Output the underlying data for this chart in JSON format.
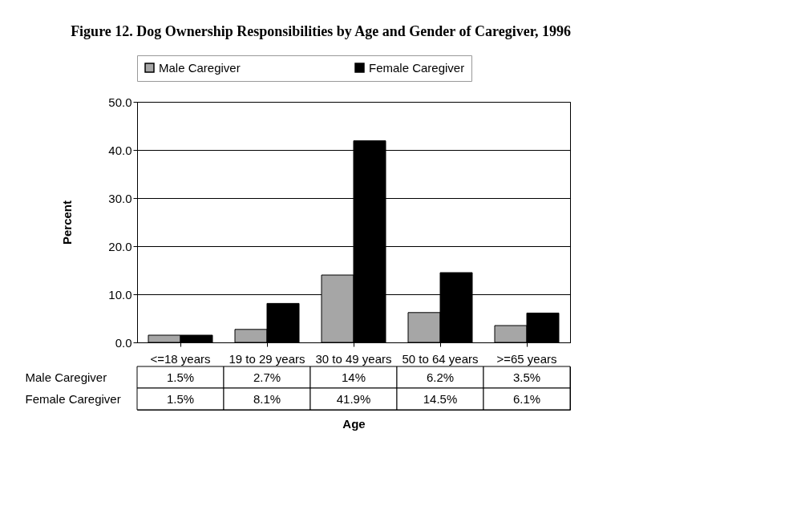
{
  "chart_data": {
    "type": "bar",
    "title": "Figure 12.  Dog Ownership Responsibilities by Age and Gender of Caregiver, 1996",
    "xlabel": "Age",
    "ylabel": "Percent",
    "categories": [
      "<=18 years",
      "19 to 29 years",
      "30 to 49 years",
      "50 to 64 years",
      ">=65 years"
    ],
    "series": [
      {
        "name": "Male Caregiver",
        "color": "#a6a6a6",
        "values": [
          1.5,
          2.7,
          14,
          6.2,
          3.5
        ],
        "value_labels": [
          "1.5%",
          "2.7%",
          "14%",
          "6.2%",
          "3.5%"
        ]
      },
      {
        "name": "Female Caregiver",
        "color": "#000000",
        "values": [
          1.5,
          8.1,
          41.9,
          14.5,
          6.1
        ],
        "value_labels": [
          "1.5%",
          "8.1%",
          "41.9%",
          "14.5%",
          "6.1%"
        ]
      }
    ],
    "ylim": [
      0,
      50
    ],
    "yticks": [
      {
        "value": 0,
        "label": "0.0"
      },
      {
        "value": 10,
        "label": "10.0"
      },
      {
        "value": 20,
        "label": "20.0"
      },
      {
        "value": 30,
        "label": "30.0"
      },
      {
        "value": 40,
        "label": "40.0"
      },
      {
        "value": 50,
        "label": "50.0"
      }
    ],
    "grid": "y",
    "legend": "top"
  }
}
